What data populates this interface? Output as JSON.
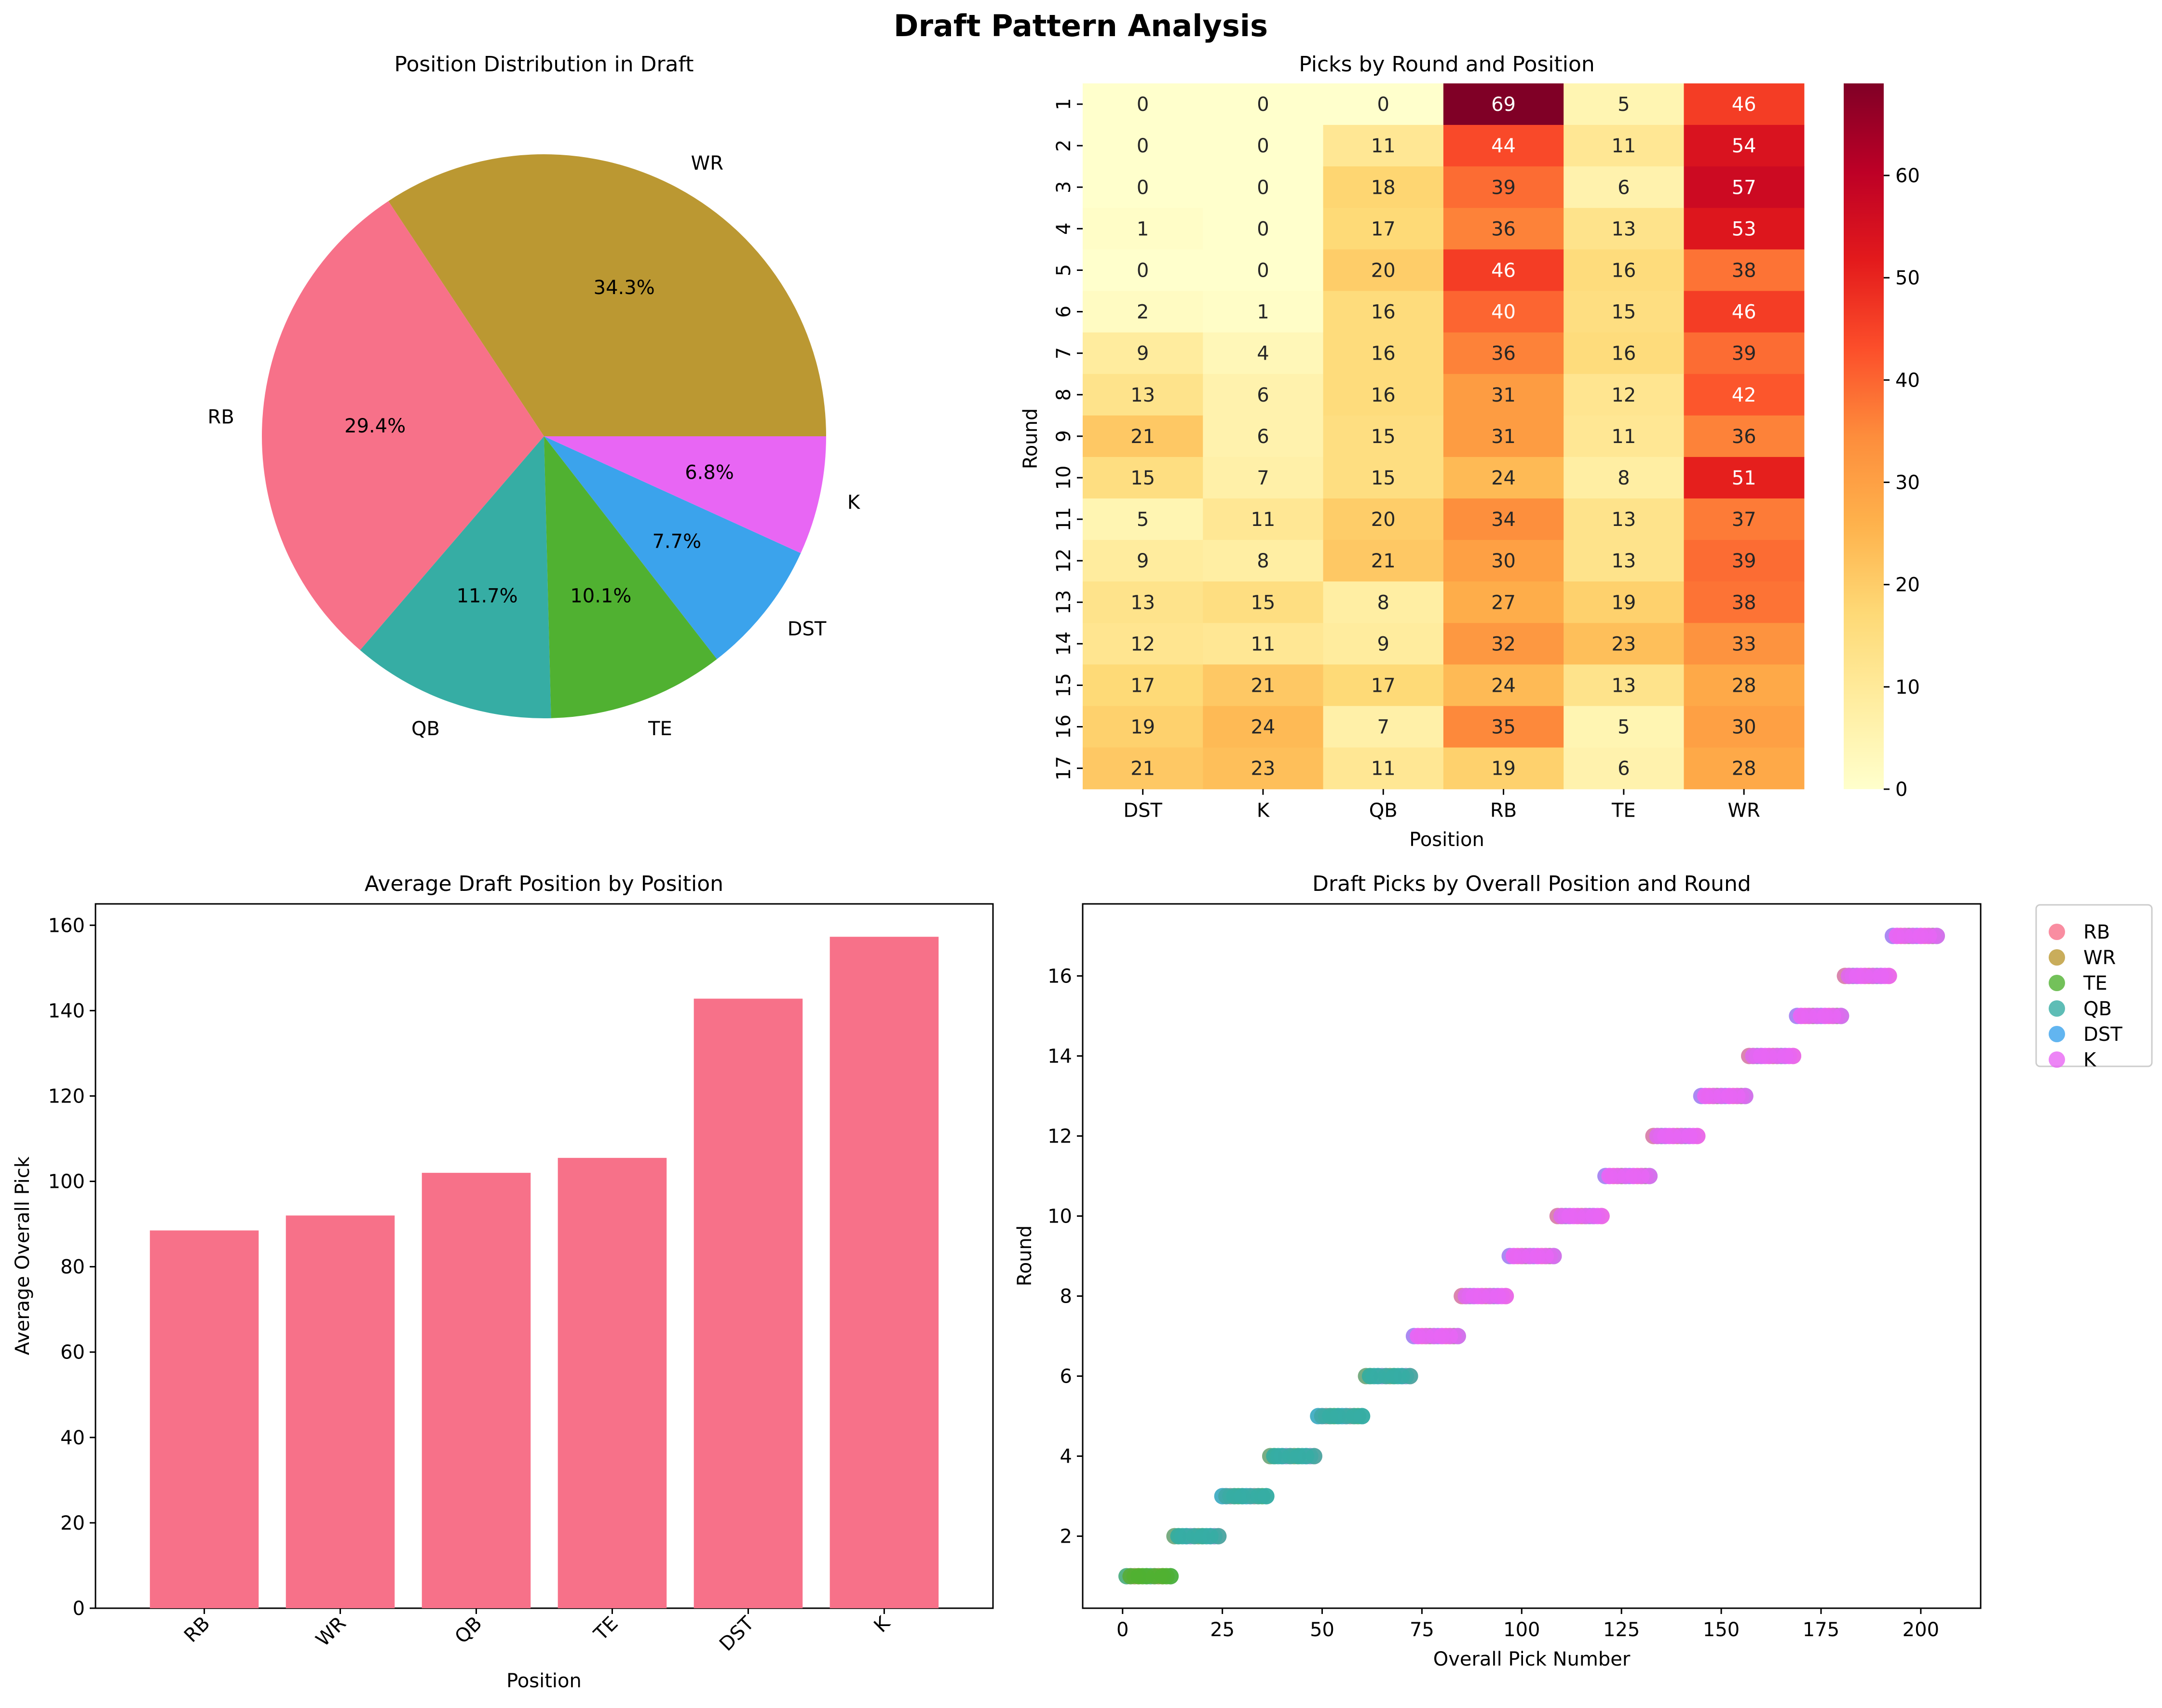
{
  "figure": {
    "title": "Draft Pattern Analysis"
  },
  "colors": {
    "RB": "#f77189",
    "WR": "#bb9832",
    "TE": "#50b131",
    "QB": "#36ada4",
    "DST": "#3ba3ec",
    "K": "#e866f4",
    "heat_low": "#ffffcc",
    "heat_high": "#800026"
  },
  "chart_data": [
    {
      "type": "pie",
      "title": "Position Distribution in Draft",
      "slices": [
        {
          "label": "WR",
          "pct": 34.3,
          "pct_label": "34.3%"
        },
        {
          "label": "RB",
          "pct": 29.4,
          "pct_label": "29.4%"
        },
        {
          "label": "QB",
          "pct": 11.7,
          "pct_label": "11.7%"
        },
        {
          "label": "TE",
          "pct": 10.1,
          "pct_label": "10.1%"
        },
        {
          "label": "DST",
          "pct": 7.7,
          "pct_label": "7.7%"
        },
        {
          "label": "K",
          "pct": 6.8,
          "pct_label": "6.8%"
        }
      ]
    },
    {
      "type": "heatmap",
      "title": "Picks by Round and Position",
      "xlabel": "Position",
      "ylabel": "Round",
      "columns": [
        "DST",
        "K",
        "QB",
        "RB",
        "TE",
        "WR"
      ],
      "rows": [
        "1",
        "2",
        "3",
        "4",
        "5",
        "6",
        "7",
        "8",
        "9",
        "10",
        "11",
        "12",
        "13",
        "14",
        "15",
        "16",
        "17"
      ],
      "values": [
        [
          0,
          0,
          0,
          69,
          5,
          46
        ],
        [
          0,
          0,
          11,
          44,
          11,
          54
        ],
        [
          0,
          0,
          18,
          39,
          6,
          57
        ],
        [
          1,
          0,
          17,
          36,
          13,
          53
        ],
        [
          0,
          0,
          20,
          46,
          16,
          38
        ],
        [
          2,
          1,
          16,
          40,
          15,
          46
        ],
        [
          9,
          4,
          16,
          36,
          16,
          39
        ],
        [
          13,
          6,
          16,
          31,
          12,
          42
        ],
        [
          21,
          6,
          15,
          31,
          11,
          36
        ],
        [
          15,
          7,
          15,
          24,
          8,
          51
        ],
        [
          5,
          11,
          20,
          34,
          13,
          37
        ],
        [
          9,
          8,
          21,
          30,
          13,
          39
        ],
        [
          13,
          15,
          8,
          27,
          19,
          38
        ],
        [
          12,
          11,
          9,
          32,
          23,
          33
        ],
        [
          17,
          21,
          17,
          24,
          13,
          28
        ],
        [
          19,
          24,
          7,
          35,
          5,
          30
        ],
        [
          21,
          23,
          11,
          19,
          6,
          28
        ]
      ],
      "vmin": 0,
      "vmax": 69,
      "colorbar_ticks": [
        "0",
        "10",
        "20",
        "30",
        "40",
        "50",
        "60"
      ]
    },
    {
      "type": "bar",
      "title": "Average Draft Position by Position",
      "xlabel": "Position",
      "ylabel": "Average Overall Pick",
      "categories": [
        "RB",
        "WR",
        "QB",
        "TE",
        "DST",
        "K"
      ],
      "values": [
        88.5,
        92,
        102,
        105.5,
        142.8,
        157.3
      ],
      "ylim": [
        0,
        165
      ],
      "yticks": [
        "0",
        "20",
        "40",
        "60",
        "80",
        "100",
        "120",
        "140",
        "160"
      ]
    },
    {
      "type": "scatter",
      "title": "Draft Picks by Overall Position and Round",
      "xlabel": "Overall Pick Number",
      "ylabel": "Round",
      "xlim": [
        -10,
        215
      ],
      "ylim": [
        0.2,
        17.8
      ],
      "xticks": [
        "0",
        "25",
        "50",
        "75",
        "100",
        "125",
        "150",
        "175",
        "200"
      ],
      "yticks": [
        "2",
        "4",
        "6",
        "8",
        "10",
        "12",
        "14",
        "16"
      ],
      "legend": [
        "RB",
        "WR",
        "TE",
        "QB",
        "DST",
        "K"
      ],
      "legend_position": "outside-right",
      "rounds": [
        {
          "round": 1,
          "x_start": 1,
          "x_end": 12,
          "top": "TE"
        },
        {
          "round": 2,
          "x_start": 13,
          "x_end": 24,
          "top": "QB"
        },
        {
          "round": 3,
          "x_start": 25,
          "x_end": 36,
          "top": "QB"
        },
        {
          "round": 4,
          "x_start": 37,
          "x_end": 48,
          "top": "QB"
        },
        {
          "round": 5,
          "x_start": 49,
          "x_end": 60,
          "top": "QB"
        },
        {
          "round": 6,
          "x_start": 61,
          "x_end": 72,
          "top": "QB"
        },
        {
          "round": 7,
          "x_start": 73,
          "x_end": 84,
          "top": "K"
        },
        {
          "round": 8,
          "x_start": 85,
          "x_end": 96,
          "top": "K"
        },
        {
          "round": 9,
          "x_start": 97,
          "x_end": 108,
          "top": "K"
        },
        {
          "round": 10,
          "x_start": 109,
          "x_end": 120,
          "top": "K"
        },
        {
          "round": 11,
          "x_start": 121,
          "x_end": 132,
          "top": "K"
        },
        {
          "round": 12,
          "x_start": 133,
          "x_end": 144,
          "top": "K"
        },
        {
          "round": 13,
          "x_start": 145,
          "x_end": 156,
          "top": "K"
        },
        {
          "round": 14,
          "x_start": 157,
          "x_end": 168,
          "top": "K"
        },
        {
          "round": 15,
          "x_start": 169,
          "x_end": 180,
          "top": "K"
        },
        {
          "round": 16,
          "x_start": 181,
          "x_end": 192,
          "top": "K"
        },
        {
          "round": 17,
          "x_start": 193,
          "x_end": 204,
          "top": "K"
        }
      ]
    }
  ]
}
